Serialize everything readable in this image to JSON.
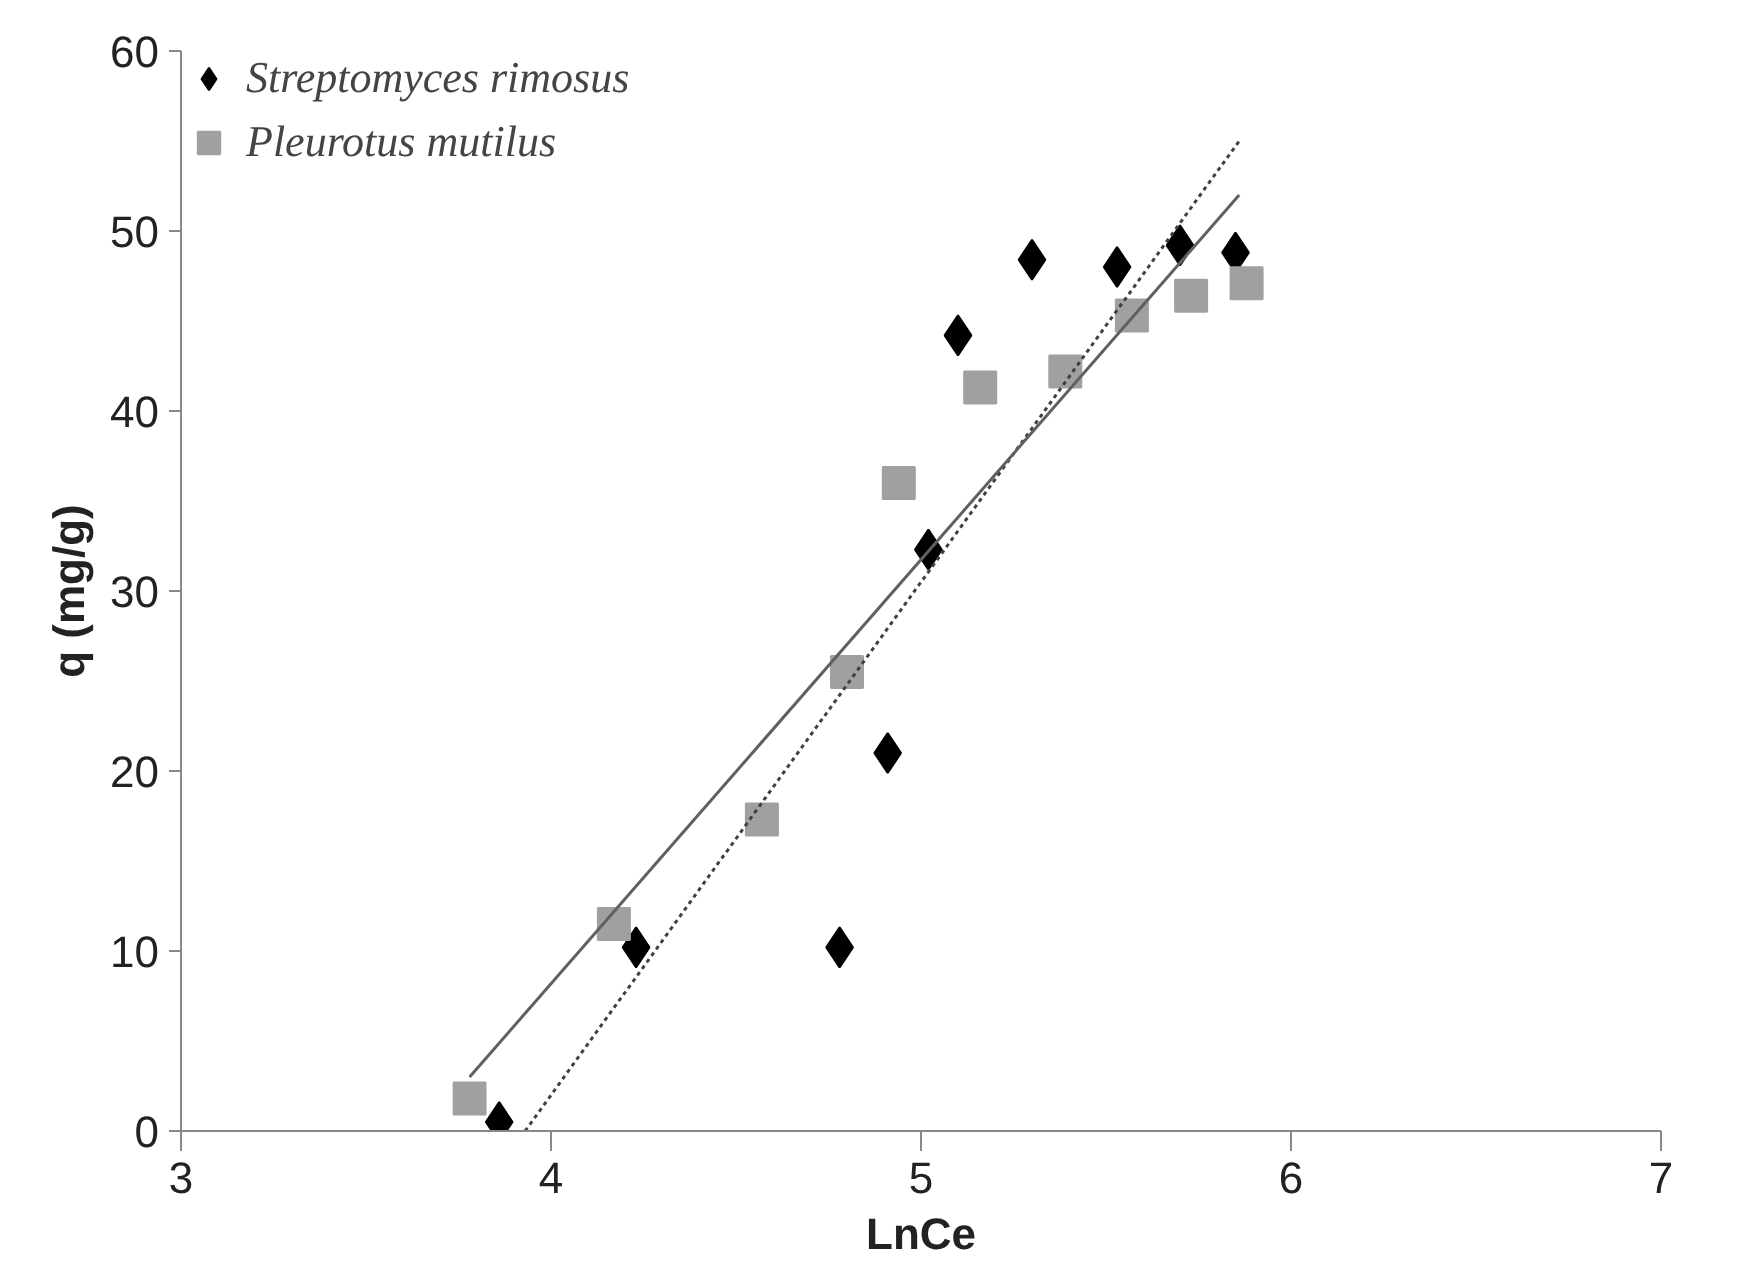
{
  "chart_data": {
    "type": "scatter",
    "xlabel": "LnCe",
    "ylabel": "q (mg/g)",
    "xlim": [
      3,
      7
    ],
    "ylim": [
      0,
      60
    ],
    "xticks": [
      3,
      4,
      5,
      6,
      7
    ],
    "yticks": [
      0,
      10,
      20,
      30,
      40,
      50,
      60
    ],
    "grid": false,
    "legend": "top left",
    "series": [
      {
        "name": "Streptomyces rimosus",
        "color": "#000000",
        "marker": "diamond",
        "x": [
          3.86,
          4.23,
          4.78,
          4.91,
          5.02,
          5.1,
          5.3,
          5.53,
          5.7,
          5.85
        ],
        "values": [
          0.5,
          10.2,
          10.2,
          21,
          32.3,
          44.2,
          48.4,
          48,
          49.2,
          48.8
        ]
      },
      {
        "name": "Pleurotus mutilus",
        "color": "#a0a0a0",
        "marker": "square",
        "x": [
          3.78,
          4.17,
          4.57,
          4.8,
          4.94,
          5.16,
          5.39,
          5.57,
          5.73,
          5.88
        ],
        "values": [
          1.8,
          11.5,
          17.3,
          25.5,
          36,
          41.3,
          42.2,
          45.3,
          46.4,
          47.1
        ]
      },
      {
        "type": "line",
        "color": "#404040",
        "line_style": "dotted",
        "marker": "none",
        "x": [
          3.93,
          5.86
        ],
        "values": [
          0,
          55
        ]
      },
      {
        "type": "line",
        "color": "#606060",
        "line_style": "solid",
        "marker": "none",
        "x": [
          3.78,
          5.86
        ],
        "values": [
          3,
          52
        ]
      }
    ]
  }
}
